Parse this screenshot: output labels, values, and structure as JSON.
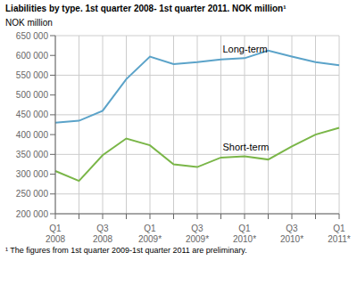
{
  "chart_data": {
    "type": "line",
    "title": "Liabilities by type. 1st quarter 2008- 1st quarter 2011. NOK million¹",
    "ylabel": "NOK million",
    "footnote": "¹ The figures from 1st quarter 2009-1st quarter 2011 are preliminary.",
    "categories": [
      "Q1\n2008",
      null,
      "Q3\n2008",
      null,
      "Q1\n2009*",
      null,
      "Q3\n2009*",
      null,
      "Q1\n2010*",
      null,
      "Q3\n2010*",
      null,
      "Q1\n2011*"
    ],
    "series": [
      {
        "name": "Long-term",
        "color": "#5ba3c9",
        "values": [
          430000,
          435000,
          460000,
          540000,
          597000,
          578000,
          583000,
          590000,
          593000,
          612000,
          597000,
          583000,
          575000
        ]
      },
      {
        "name": "Short-term",
        "color": "#7ab648",
        "values": [
          308000,
          283000,
          348000,
          390000,
          373000,
          325000,
          318000,
          342000,
          345000,
          337000,
          370000,
          400000,
          417000
        ]
      }
    ],
    "ylim": [
      200000,
      650000
    ],
    "yticks": [
      {
        "value": 200000,
        "label": "200 000"
      },
      {
        "value": 250000,
        "label": "250 000"
      },
      {
        "value": 300000,
        "label": "300 000"
      },
      {
        "value": 350000,
        "label": "350 000"
      },
      {
        "value": 400000,
        "label": "400 000"
      },
      {
        "value": 450000,
        "label": "450 000"
      },
      {
        "value": 500000,
        "label": "500 000"
      },
      {
        "value": 550000,
        "label": "550 000"
      },
      {
        "value": 600000,
        "label": "600 000"
      },
      {
        "value": 650000,
        "label": "650 000"
      }
    ],
    "grid": true
  }
}
